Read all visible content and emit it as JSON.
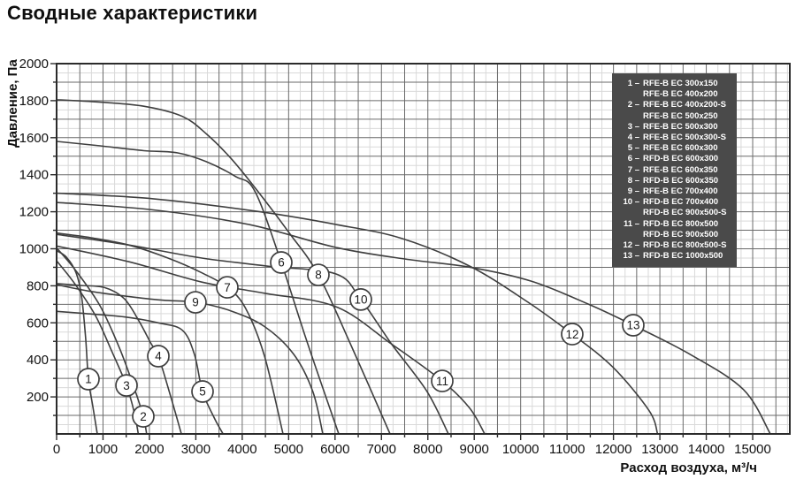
{
  "page": {
    "title": "Сводные характеристики"
  },
  "colors": {
    "curve": "#3f3f3f",
    "grid_minor": "#d9d9d9",
    "grid_major": "#6a6a6a",
    "axis": "#2b2b2b",
    "legend_bg": "#4a4a4a",
    "legend_text": "#ffffff",
    "marker_fill": "#ffffff"
  },
  "chart_data": {
    "type": "line",
    "title": "Сводные характеристики",
    "xlabel": "Расход воздуха, м³/ч",
    "ylabel": "Давление, Па",
    "xlim": [
      0,
      15800
    ],
    "ylim": [
      0,
      2000
    ],
    "grid": {
      "x_minor": 250,
      "x_major": 500,
      "y_minor": 50,
      "y_major": 100,
      "on": true
    },
    "x_ticks": [
      0,
      1000,
      2000,
      3000,
      4000,
      5000,
      6000,
      7000,
      8000,
      9000,
      10000,
      11000,
      12000,
      13000,
      14000,
      15000
    ],
    "y_ticks": [
      200,
      400,
      600,
      800,
      1000,
      1200,
      1400,
      1600,
      1800,
      2000
    ],
    "legend_position": "top-right",
    "series": [
      {
        "id": "1",
        "models": [
          "RFE-B EC 300x150",
          "RFE-B EC 400x200"
        ],
        "label_at": [
          686,
          296
        ],
        "points": [
          [
            0,
            990
          ],
          [
            210,
            955
          ],
          [
            420,
            870
          ],
          [
            540,
            740
          ],
          [
            625,
            520
          ],
          [
            686,
            296
          ],
          [
            780,
            150
          ],
          [
            877,
            0
          ]
        ]
      },
      {
        "id": "2",
        "models": [
          "RFE-B EC 400x200-S",
          "RFE-B EC 500x250"
        ],
        "label_at": [
          1868,
          95
        ],
        "points": [
          [
            0,
            1005
          ],
          [
            420,
            880
          ],
          [
            940,
            690
          ],
          [
            1360,
            460
          ],
          [
            1670,
            250
          ],
          [
            1868,
            95
          ],
          [
            1940,
            0
          ]
        ]
      },
      {
        "id": "3",
        "models": [
          "RFE-B EC 500x300"
        ],
        "label_at": [
          1506,
          262
        ],
        "points": [
          [
            0,
            935
          ],
          [
            365,
            820
          ],
          [
            835,
            640
          ],
          [
            1200,
            440
          ],
          [
            1506,
            262
          ],
          [
            1670,
            120
          ],
          [
            1762,
            0
          ]
        ]
      },
      {
        "id": "4",
        "models": [
          "RFE-B EC 500x300-S"
        ],
        "label_at": [
          2192,
          420
        ],
        "points": [
          [
            0,
            812
          ],
          [
            520,
            802
          ],
          [
            1040,
            790
          ],
          [
            1460,
            730
          ],
          [
            1775,
            610
          ],
          [
            2030,
            490
          ],
          [
            2192,
            420
          ],
          [
            2450,
            210
          ],
          [
            2690,
            0
          ]
        ]
      },
      {
        "id": "5",
        "models": [
          "RFE-B EC 600x300"
        ],
        "label_at": [
          3145,
          229
        ],
        "points": [
          [
            0,
            662
          ],
          [
            625,
            650
          ],
          [
            1460,
            632
          ],
          [
            2190,
            600
          ],
          [
            2710,
            560
          ],
          [
            2970,
            430
          ],
          [
            3145,
            229
          ],
          [
            3390,
            90
          ],
          [
            3587,
            0
          ]
        ]
      },
      {
        "id": "6",
        "models": [
          "RFD-B EC 600x300"
        ],
        "label_at": [
          4841,
          926
        ],
        "points": [
          [
            0,
            1580
          ],
          [
            940,
            1556
          ],
          [
            1880,
            1530
          ],
          [
            2610,
            1518
          ],
          [
            3230,
            1470
          ],
          [
            3860,
            1390
          ],
          [
            4275,
            1310
          ],
          [
            4841,
            926
          ],
          [
            5420,
            480
          ],
          [
            6080,
            0
          ]
        ]
      },
      {
        "id": "7",
        "models": [
          "RFE-B EC 600x350"
        ],
        "label_at": [
          3678,
          792
        ],
        "points": [
          [
            0,
            1085
          ],
          [
            730,
            1060
          ],
          [
            1560,
            1020
          ],
          [
            2400,
            950
          ],
          [
            3130,
            870
          ],
          [
            3678,
            792
          ],
          [
            4070,
            680
          ],
          [
            4480,
            420
          ],
          [
            4879,
            0
          ]
        ]
      },
      {
        "id": "8",
        "models": [
          "RFD-B EC 600x350"
        ],
        "label_at": [
          5641,
          859
        ],
        "points": [
          [
            0,
            1805
          ],
          [
            940,
            1792
          ],
          [
            1880,
            1770
          ],
          [
            2710,
            1715
          ],
          [
            3230,
            1620
          ],
          [
            3750,
            1490
          ],
          [
            4275,
            1330
          ],
          [
            5000,
            1090
          ],
          [
            5641,
            859
          ],
          [
            6360,
            470
          ],
          [
            7186,
            0
          ]
        ]
      },
      {
        "id": "9",
        "models": [
          "RFE-B EC 700x400"
        ],
        "label_at": [
          2992,
          711
        ],
        "points": [
          [
            0,
            806
          ],
          [
            730,
            770
          ],
          [
            1560,
            742
          ],
          [
            2290,
            722
          ],
          [
            2992,
            711
          ],
          [
            3750,
            665
          ],
          [
            4480,
            580
          ],
          [
            5110,
            430
          ],
          [
            5520,
            230
          ],
          [
            5737,
            0
          ]
        ]
      },
      {
        "id": "10",
        "models": [
          "RFD-B EC 700x400",
          "RFD-B EC 900x500-S"
        ],
        "label_at": [
          6556,
          726
        ],
        "points": [
          [
            0,
            1078
          ],
          [
            1560,
            1020
          ],
          [
            3130,
            950
          ],
          [
            4590,
            905
          ],
          [
            6020,
            864
          ],
          [
            6556,
            726
          ],
          [
            7220,
            485
          ],
          [
            7980,
            230
          ],
          [
            8443,
            0
          ]
        ]
      },
      {
        "id": "11",
        "models": [
          "RFD-B EC 800x500",
          "RFD-B EC 900x500"
        ],
        "label_at": [
          8310,
          286
        ],
        "points": [
          [
            0,
            1015
          ],
          [
            1560,
            930
          ],
          [
            3130,
            820
          ],
          [
            4480,
            760
          ],
          [
            6020,
            687
          ],
          [
            7220,
            485
          ],
          [
            8310,
            286
          ],
          [
            8900,
            140
          ],
          [
            9225,
            0
          ]
        ]
      },
      {
        "id": "12",
        "models": [
          "RFD-B EC 800x500-S"
        ],
        "label_at": [
          11111,
          539
        ],
        "points": [
          [
            0,
            1300
          ],
          [
            2080,
            1270
          ],
          [
            4380,
            1200
          ],
          [
            6050,
            1130
          ],
          [
            7450,
            1055
          ],
          [
            8910,
            905
          ],
          [
            10160,
            711
          ],
          [
            11111,
            539
          ],
          [
            11990,
            360
          ],
          [
            12770,
            125
          ],
          [
            12950,
            0
          ]
        ]
      },
      {
        "id": "13",
        "models": [
          "RFD-B EC 1000x500"
        ],
        "label_at": [
          12426,
          587
        ],
        "points": [
          [
            0,
            1250
          ],
          [
            2080,
            1210
          ],
          [
            4170,
            1130
          ],
          [
            6020,
            1007
          ],
          [
            7500,
            945
          ],
          [
            8910,
            900
          ],
          [
            10220,
            826
          ],
          [
            11470,
            700
          ],
          [
            12426,
            587
          ],
          [
            13650,
            430
          ],
          [
            14800,
            240
          ],
          [
            15380,
            0
          ]
        ]
      }
    ],
    "legend_rows": [
      {
        "num": "1 –",
        "model": "RFE-B EC 300x150"
      },
      {
        "num": "",
        "model": "RFE-B EC 400x200"
      },
      {
        "num": "2 –",
        "model": "RFE-B EC 400x200-S"
      },
      {
        "num": "",
        "model": "RFE-B EC 500x250"
      },
      {
        "num": "3 –",
        "model": "RFE-B EC 500x300"
      },
      {
        "num": "4 –",
        "model": "RFE-B EC 500x300-S"
      },
      {
        "num": "5 –",
        "model": "RFE-B EC 600x300"
      },
      {
        "num": "6 –",
        "model": "RFD-B EC 600x300"
      },
      {
        "num": "7 –",
        "model": "RFE-B EC 600x350"
      },
      {
        "num": "8 –",
        "model": "RFD-B EC 600x350"
      },
      {
        "num": "9 –",
        "model": "RFE-B EC 700x400"
      },
      {
        "num": "10 –",
        "model": "RFD-B EC 700x400"
      },
      {
        "num": "",
        "model": "RFD-B EC 900x500-S"
      },
      {
        "num": "11 –",
        "model": "RFD-B EC 800x500"
      },
      {
        "num": "",
        "model": "RFD-B EC 900x500"
      },
      {
        "num": "12 –",
        "model": "RFD-B EC 800x500-S"
      },
      {
        "num": "13 –",
        "model": "RFD-B EC 1000x500"
      }
    ]
  }
}
